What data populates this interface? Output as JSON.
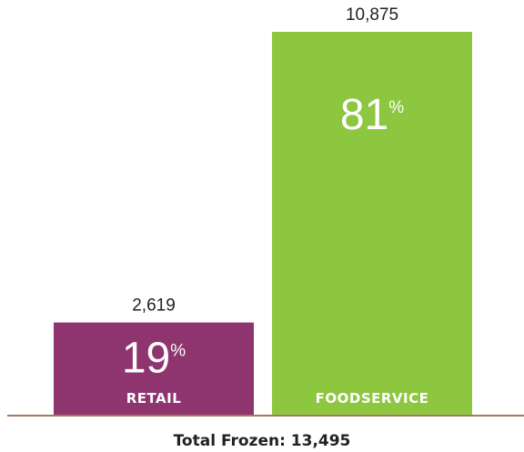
{
  "chart_data": {
    "type": "bar",
    "categories": [
      "RETAIL",
      "FOODSERVICE"
    ],
    "values": [
      2619,
      10875
    ],
    "value_labels": [
      "2,619",
      "10,875"
    ],
    "percent_values": [
      "19",
      "81"
    ],
    "percent_symbol": "%",
    "colors": [
      "#8e3570",
      "#8dc63f"
    ],
    "axis_color": "#8b4a24",
    "total_label": "Total Frozen: 13,495",
    "ylim": [
      0,
      10875
    ]
  }
}
